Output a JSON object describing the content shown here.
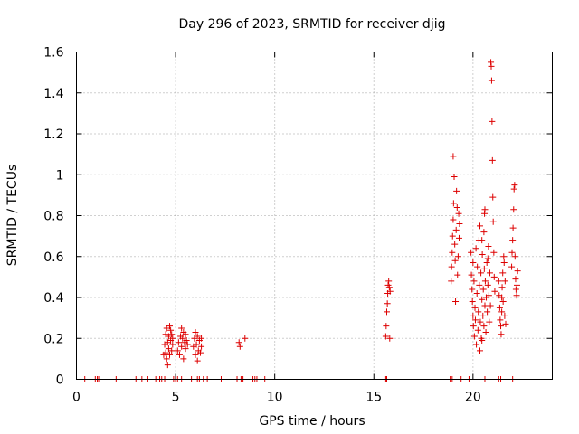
{
  "chart_data": {
    "type": "scatter",
    "title": "Day 296 of 2023, SRMTID for receiver djig",
    "xlabel": "GPS time / hours",
    "ylabel": "SRMTID / TECUs",
    "xlim": [
      0,
      24
    ],
    "ylim": [
      0,
      1.6
    ],
    "xticks": [
      0,
      5,
      10,
      15,
      20
    ],
    "yticks": [
      0,
      0.2,
      0.4,
      0.6,
      0.8,
      1,
      1.2,
      1.4,
      1.6
    ],
    "ytick_labels": [
      "0",
      "0.2",
      "0.4",
      "0.6",
      "0.8",
      "1",
      "1.2",
      "1.4",
      "1.6"
    ],
    "grid": true,
    "marker": "+",
    "color": "#dd0000",
    "series": [
      {
        "name": "SRMTID",
        "points": [
          [
            0.42,
            0
          ],
          [
            0.95,
            0
          ],
          [
            1.05,
            0
          ],
          [
            1.12,
            0
          ],
          [
            2.0,
            0
          ],
          [
            3.0,
            0
          ],
          [
            3.3,
            0
          ],
          [
            3.6,
            0
          ],
          [
            4.0,
            0
          ],
          [
            4.2,
            0
          ],
          [
            4.3,
            0
          ],
          [
            4.45,
            0
          ],
          [
            4.9,
            0
          ],
          [
            5.0,
            0
          ],
          [
            5.1,
            0
          ],
          [
            5.3,
            0
          ],
          [
            5.8,
            0
          ],
          [
            6.1,
            0
          ],
          [
            6.2,
            0
          ],
          [
            6.4,
            0
          ],
          [
            6.6,
            0
          ],
          [
            7.3,
            0
          ],
          [
            8.1,
            0
          ],
          [
            8.3,
            0
          ],
          [
            8.4,
            0
          ],
          [
            8.9,
            0
          ],
          [
            9.0,
            0
          ],
          [
            9.1,
            0
          ],
          [
            9.5,
            0
          ],
          [
            15.6,
            0
          ],
          [
            15.65,
            0
          ],
          [
            18.85,
            0
          ],
          [
            18.95,
            0
          ],
          [
            19.4,
            0
          ],
          [
            19.8,
            0
          ],
          [
            20.6,
            0
          ],
          [
            21.3,
            0
          ],
          [
            21.4,
            0
          ],
          [
            22.0,
            0
          ],
          [
            4.4,
            0.12
          ],
          [
            4.45,
            0.17
          ],
          [
            4.5,
            0.22
          ],
          [
            4.5,
            0.13
          ],
          [
            4.55,
            0.25
          ],
          [
            4.55,
            0.1
          ],
          [
            4.6,
            0.18
          ],
          [
            4.6,
            0.07
          ],
          [
            4.65,
            0.21
          ],
          [
            4.65,
            0.15
          ],
          [
            4.7,
            0.26
          ],
          [
            4.7,
            0.12
          ],
          [
            4.75,
            0.24
          ],
          [
            4.75,
            0.19
          ],
          [
            4.8,
            0.22
          ],
          [
            4.8,
            0.14
          ],
          [
            4.85,
            0.17
          ],
          [
            4.85,
            0.2
          ],
          [
            5.1,
            0.14
          ],
          [
            5.15,
            0.18
          ],
          [
            5.2,
            0.12
          ],
          [
            5.25,
            0.21
          ],
          [
            5.3,
            0.25
          ],
          [
            5.3,
            0.16
          ],
          [
            5.35,
            0.2
          ],
          [
            5.4,
            0.23
          ],
          [
            5.4,
            0.1
          ],
          [
            5.45,
            0.18
          ],
          [
            5.5,
            0.22
          ],
          [
            5.5,
            0.15
          ],
          [
            5.55,
            0.19
          ],
          [
            5.6,
            0.17
          ],
          [
            5.9,
            0.16
          ],
          [
            5.95,
            0.2
          ],
          [
            6.0,
            0.12
          ],
          [
            6.0,
            0.23
          ],
          [
            6.05,
            0.17
          ],
          [
            6.1,
            0.21
          ],
          [
            6.1,
            0.09
          ],
          [
            6.15,
            0.14
          ],
          [
            6.2,
            0.19
          ],
          [
            6.25,
            0.13
          ],
          [
            6.3,
            0.2
          ],
          [
            6.3,
            0.16
          ],
          [
            8.2,
            0.18
          ],
          [
            8.25,
            0.16
          ],
          [
            8.5,
            0.2
          ],
          [
            15.6,
            0.21
          ],
          [
            15.62,
            0.26
          ],
          [
            15.65,
            0.33
          ],
          [
            15.68,
            0.37
          ],
          [
            15.7,
            0.42
          ],
          [
            15.72,
            0.46
          ],
          [
            15.75,
            0.48
          ],
          [
            15.78,
            0.45
          ],
          [
            15.8,
            0.2
          ],
          [
            15.82,
            0.43
          ],
          [
            18.9,
            0.48
          ],
          [
            18.92,
            0.55
          ],
          [
            18.95,
            0.62
          ],
          [
            18.97,
            0.7
          ],
          [
            19.0,
            0.78
          ],
          [
            19.0,
            1.09
          ],
          [
            19.02,
            0.86
          ],
          [
            19.05,
            0.99
          ],
          [
            19.08,
            0.66
          ],
          [
            19.1,
            0.58
          ],
          [
            19.12,
            0.38
          ],
          [
            19.15,
            0.73
          ],
          [
            19.17,
            0.92
          ],
          [
            19.2,
            0.84
          ],
          [
            19.22,
            0.51
          ],
          [
            19.25,
            0.6
          ],
          [
            19.28,
            0.81
          ],
          [
            19.3,
            0.69
          ],
          [
            19.32,
            0.76
          ],
          [
            19.9,
            0.62
          ],
          [
            19.92,
            0.51
          ],
          [
            19.95,
            0.44
          ],
          [
            19.97,
            0.38
          ],
          [
            20.0,
            0.31
          ],
          [
            20.0,
            0.57
          ],
          [
            20.02,
            0.26
          ],
          [
            20.05,
            0.48
          ],
          [
            20.07,
            0.21
          ],
          [
            20.1,
            0.35
          ],
          [
            20.12,
            0.29
          ],
          [
            20.15,
            0.64
          ],
          [
            20.17,
            0.17
          ],
          [
            20.2,
            0.42
          ],
          [
            20.22,
            0.55
          ],
          [
            20.25,
            0.24
          ],
          [
            20.27,
            0.33
          ],
          [
            20.3,
            0.68
          ],
          [
            20.32,
            0.46
          ],
          [
            20.35,
            0.75
          ],
          [
            20.37,
            0.28
          ],
          [
            20.4,
            0.52
          ],
          [
            20.42,
            0.2
          ],
          [
            20.45,
            0.39
          ],
          [
            20.47,
            0.61
          ],
          [
            20.5,
            0.31
          ],
          [
            20.52,
            0.44
          ],
          [
            20.55,
            0.26
          ],
          [
            20.57,
            0.54
          ],
          [
            20.6,
            0.36
          ],
          [
            20.62,
            0.48
          ],
          [
            20.65,
            0.23
          ],
          [
            20.67,
            0.4
          ],
          [
            20.7,
            0.57
          ],
          [
            20.72,
            0.33
          ],
          [
            20.75,
            0.46
          ],
          [
            20.78,
            0.65
          ],
          [
            20.8,
            0.41
          ],
          [
            20.82,
            0.28
          ],
          [
            20.85,
            0.52
          ],
          [
            20.88,
            0.36
          ],
          [
            20.9,
            1.55
          ],
          [
            20.92,
            1.53
          ],
          [
            20.94,
            1.46
          ],
          [
            20.96,
            1.26
          ],
          [
            20.98,
            1.07
          ],
          [
            21.0,
            0.89
          ],
          [
            21.02,
            0.77
          ],
          [
            21.05,
            0.62
          ],
          [
            21.07,
            0.5
          ],
          [
            21.1,
            0.43
          ],
          [
            20.58,
            0.81
          ],
          [
            20.6,
            0.83
          ],
          [
            20.55,
            0.72
          ],
          [
            20.45,
            0.68
          ],
          [
            20.75,
            0.59
          ],
          [
            20.35,
            0.14
          ],
          [
            20.45,
            0.19
          ],
          [
            21.3,
            0.48
          ],
          [
            21.32,
            0.41
          ],
          [
            21.35,
            0.35
          ],
          [
            21.37,
            0.29
          ],
          [
            21.4,
            0.26
          ],
          [
            21.42,
            0.22
          ],
          [
            21.45,
            0.33
          ],
          [
            21.47,
            0.45
          ],
          [
            21.5,
            0.52
          ],
          [
            21.52,
            0.38
          ],
          [
            21.55,
            0.6
          ],
          [
            21.57,
            0.57
          ],
          [
            21.6,
            0.31
          ],
          [
            21.62,
            0.48
          ],
          [
            21.65,
            0.27
          ],
          [
            21.45,
            0.4
          ],
          [
            21.95,
            0.55
          ],
          [
            21.97,
            0.62
          ],
          [
            22.0,
            0.68
          ],
          [
            22.02,
            0.74
          ],
          [
            22.05,
            0.83
          ],
          [
            22.07,
            0.93
          ],
          [
            22.1,
            0.95
          ],
          [
            22.12,
            0.6
          ],
          [
            22.15,
            0.49
          ],
          [
            22.17,
            0.44
          ],
          [
            22.2,
            0.41
          ],
          [
            22.22,
            0.46
          ],
          [
            22.25,
            0.53
          ]
        ]
      }
    ]
  }
}
